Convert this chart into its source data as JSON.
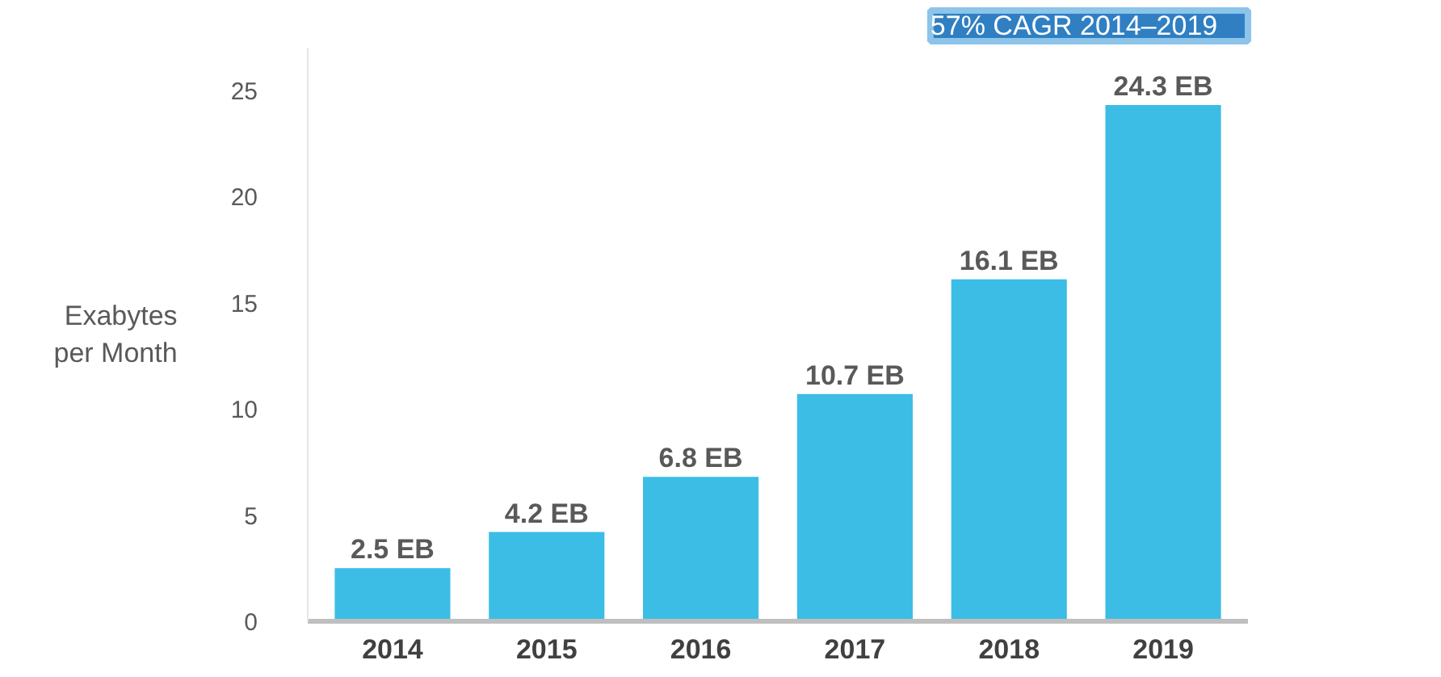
{
  "chart_data": {
    "type": "bar",
    "ylabel": "Exabytes\nper Month",
    "categories": [
      "2014",
      "2015",
      "2016",
      "2017",
      "2018",
      "2019"
    ],
    "values": [
      2.5,
      4.2,
      6.8,
      10.7,
      16.1,
      24.3
    ],
    "value_labels": [
      "2.5 EB",
      "4.2 EB",
      "6.8 EB",
      "10.7 EB",
      "16.1 EB",
      "24.3 EB"
    ],
    "color": "#3bbde6",
    "ylim": [
      0,
      27
    ],
    "yticks": [
      0,
      5,
      10,
      15,
      20,
      25
    ],
    "grid": false,
    "annotations": [
      "57% CAGR 2014–2019"
    ]
  }
}
